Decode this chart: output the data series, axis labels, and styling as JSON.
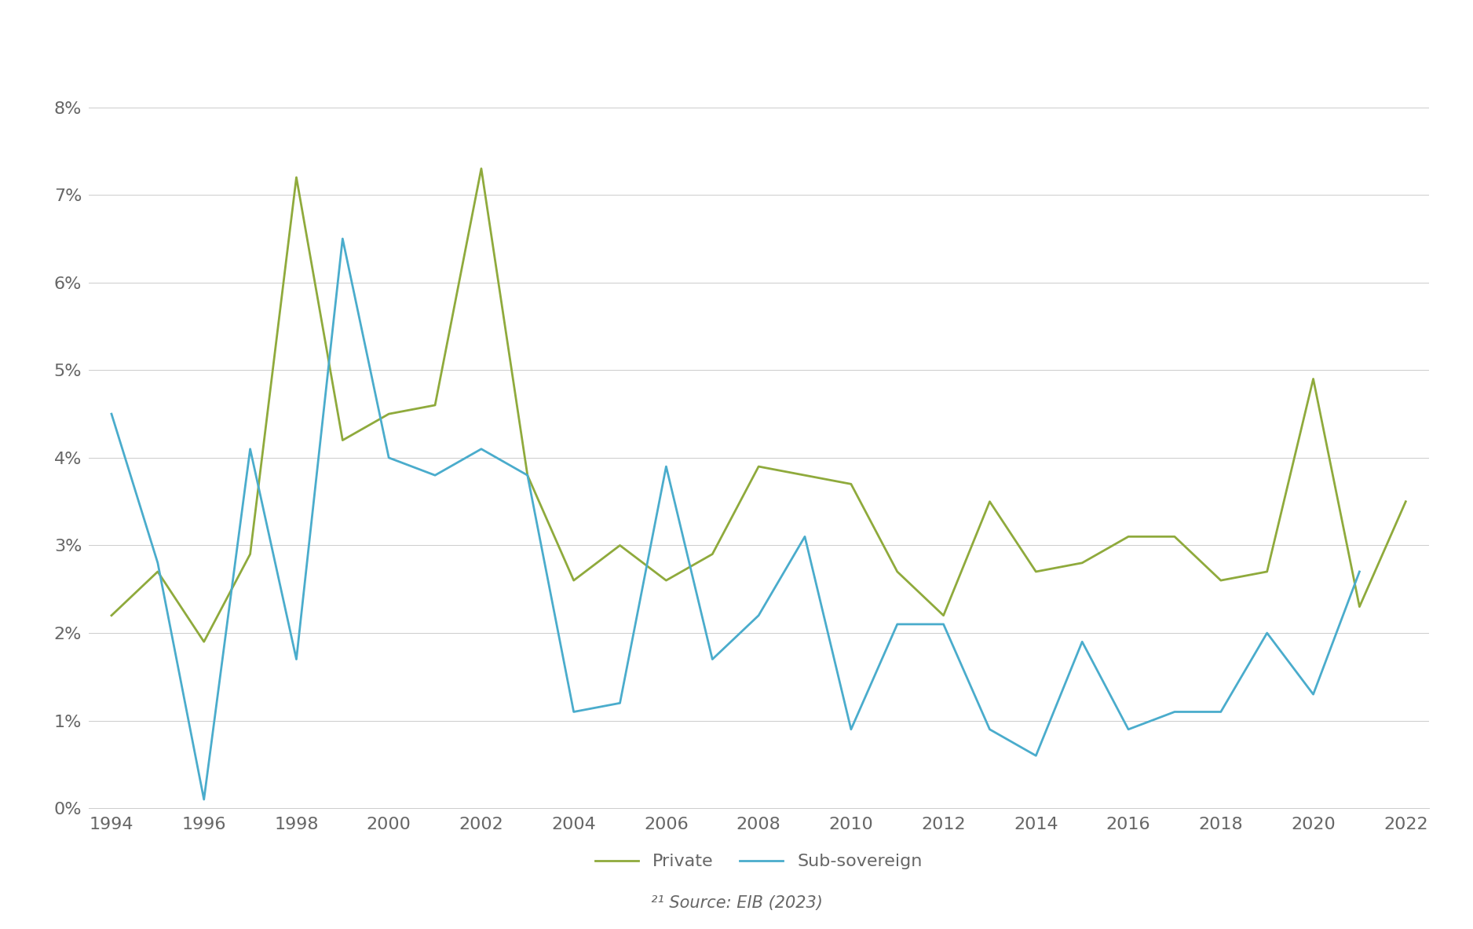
{
  "years": [
    1994,
    1995,
    1996,
    1997,
    1998,
    1999,
    2000,
    2001,
    2002,
    2003,
    2004,
    2005,
    2006,
    2007,
    2008,
    2009,
    2010,
    2011,
    2012,
    2013,
    2014,
    2015,
    2016,
    2017,
    2018,
    2019,
    2020,
    2021,
    2022
  ],
  "private": [
    0.022,
    0.027,
    0.019,
    0.029,
    0.072,
    0.042,
    0.045,
    0.046,
    0.073,
    0.038,
    0.026,
    0.03,
    0.026,
    0.029,
    0.039,
    0.038,
    0.037,
    0.027,
    0.022,
    0.035,
    0.027,
    0.028,
    0.031,
    0.031,
    0.026,
    0.027,
    0.049,
    0.023,
    0.035
  ],
  "sub_sovereign_years": [
    1994,
    1995,
    1996,
    1997,
    1998,
    1999,
    2000,
    2001,
    2002,
    2003,
    2004,
    2005,
    2006,
    2007,
    2008,
    2009,
    2010,
    2011,
    2012,
    2013,
    2014,
    2015,
    2016,
    2017,
    2018,
    2019,
    2020,
    2021
  ],
  "sub_sovereign": [
    0.045,
    0.028,
    0.001,
    0.041,
    0.017,
    0.065,
    0.04,
    0.038,
    0.041,
    0.038,
    0.011,
    0.012,
    0.039,
    0.017,
    0.022,
    0.031,
    0.009,
    0.021,
    0.021,
    0.009,
    0.006,
    0.019,
    0.009,
    0.011,
    0.011,
    0.02,
    0.013,
    0.027
  ],
  "private_color": "#8faa3c",
  "sub_sovereign_color": "#4aaccc",
  "private_label": "Private",
  "sub_sovereign_label": "Sub-sovereign",
  "xlim_left": 1993.5,
  "xlim_right": 2022.5,
  "ylim": [
    0.0,
    0.088
  ],
  "yticks": [
    0.0,
    0.01,
    0.02,
    0.03,
    0.04,
    0.05,
    0.06,
    0.07,
    0.08
  ],
  "ytick_labels": [
    "0%",
    "1%",
    "2%",
    "3%",
    "4%",
    "5%",
    "6%",
    "7%",
    "8%"
  ],
  "xticks": [
    1994,
    1996,
    1998,
    2000,
    2002,
    2004,
    2006,
    2008,
    2010,
    2012,
    2014,
    2016,
    2018,
    2020,
    2022
  ],
  "source_text": "²¹ Source: EIB (2023)",
  "line_width": 2.0,
  "background_color": "#ffffff",
  "grid_color": "#cccccc",
  "tick_color": "#666666",
  "figure_width": 18.76,
  "figure_height": 11.83,
  "tick_fontsize": 16,
  "legend_fontsize": 16,
  "source_fontsize": 15
}
